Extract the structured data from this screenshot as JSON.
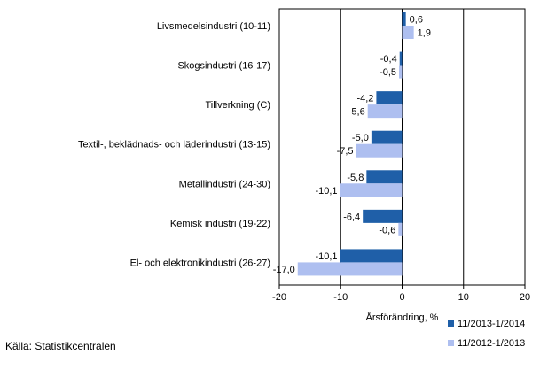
{
  "chart_data": {
    "type": "bar",
    "orientation": "horizontal",
    "categories": [
      "Livsmedelsindustri (10-11)",
      "Skogsindustri (16-17)",
      "Tillverkning (C)",
      "Textil-, beklädnads- och läderindustri (13-15)",
      "Metallindustri (24-30)",
      "Kemisk industri (19-22)",
      "El- och elektronikindustri (26-27)"
    ],
    "series": [
      {
        "name": "11/2013-1/2014",
        "color": "#1f5fa8",
        "values": [
          0.6,
          -0.4,
          -4.2,
          -5.0,
          -5.8,
          -6.4,
          -10.1
        ]
      },
      {
        "name": "11/2012-1/2013",
        "color": "#aebff0",
        "values": [
          1.9,
          -0.5,
          -5.6,
          -7.5,
          -10.1,
          -0.6,
          -17.0
        ]
      }
    ],
    "value_labels": [
      [
        "0,6",
        "-0,4",
        "-4,2",
        "-5,0",
        "-5,8",
        "-6,4",
        "-10,1"
      ],
      [
        "1,9",
        "-0,5",
        "-5,6",
        "-7,5",
        "-10,1",
        "-0,6",
        "-17,0"
      ]
    ],
    "xlim": [
      -20,
      20
    ],
    "xticks": [
      -20,
      -10,
      0,
      10,
      20
    ],
    "xlabel": "Årsförändring, %",
    "grid": "vertical",
    "legend_position": "bottom-right"
  },
  "source": "Källa: Statistikcentralen"
}
